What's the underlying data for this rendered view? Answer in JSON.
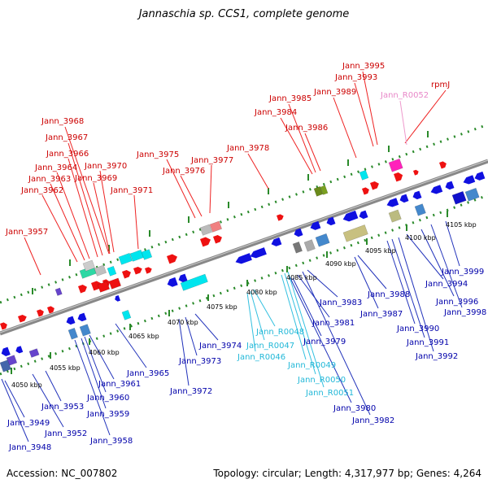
{
  "title": "Jannaschia sp. CCS1, complete genome",
  "footer": {
    "accession": "Accession: NC_007802",
    "summary": "Topology: circular; Length: 4,317,977 bp; Genes: 4,264"
  },
  "colors": {
    "forward_label": "#cc0000",
    "reverse_label": "#0000aa",
    "rna_label": "#22b8d8",
    "pseudo_label": "#e887c8",
    "backbone": "#888888",
    "tick": "#2a8a2a"
  },
  "scale_labels": [
    "4050 kbp",
    "4055 kbp",
    "4060 kbp",
    "4065 kbp",
    "4070 kbp",
    "4075 kbp",
    "4080 kbp",
    "4085 kbp",
    "4090 kbp",
    "4095 kbp",
    "4100 kbp",
    "4105 kbp"
  ],
  "forward_genes": [
    "Jann_3957",
    "Jann_3962",
    "Jann_3963",
    "Jann_3964",
    "Jann_3966",
    "Jann_3967",
    "Jann_3968",
    "Jann_3969",
    "Jann_3970",
    "Jann_3971",
    "Jann_3975",
    "Jann_3976",
    "Jann_3977",
    "Jann_3978",
    "Jann_3984",
    "Jann_3985",
    "Jann_3986",
    "Jann_3989",
    "Jann_3993",
    "Jann_3995",
    "rpmJ"
  ],
  "pseudo_genes": [
    "Jann_R0052"
  ],
  "reverse_genes": [
    "Jann_3948",
    "Jann_3949",
    "Jann_3952",
    "Jann_3953",
    "Jann_3958",
    "Jann_3959",
    "Jann_3960",
    "Jann_3961",
    "Jann_3965",
    "Jann_3972",
    "Jann_3973",
    "Jann_3974",
    "Jann_3979",
    "Jann_3980",
    "Jann_3981",
    "Jann_3982",
    "Jann_3983",
    "Jann_3987",
    "Jann_3988",
    "Jann_3990",
    "Jann_3991",
    "Jann_3992",
    "Jann_3994",
    "Jann_3996",
    "Jann_3998",
    "Jann_3999"
  ],
  "rna_genes": [
    "Jann_R0046",
    "Jann_R0047",
    "Jann_R0048",
    "Jann_R0049",
    "Jann_R0050",
    "Jann_R0051"
  ]
}
